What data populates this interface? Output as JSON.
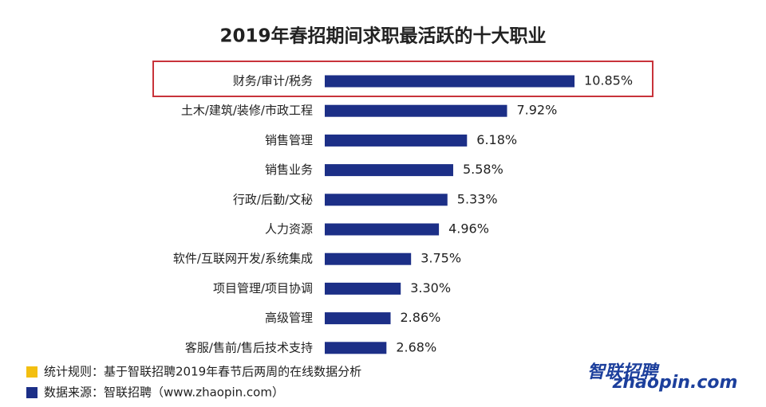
{
  "chart_data": {
    "type": "bar",
    "orientation": "horizontal",
    "title": "2019年春招期间求职最活跃的十大职业",
    "categories": [
      "财务/审计/税务",
      "土木/建筑/装修/市政工程",
      "销售管理",
      "销售业务",
      "行政/后勤/文秘",
      "人力资源",
      "软件/互联网开发/系统集成",
      "项目管理/项目协调",
      "高级管理",
      "客服/售前/售后技术支持"
    ],
    "values": [
      10.85,
      7.92,
      6.18,
      5.58,
      5.33,
      4.96,
      3.75,
      3.3,
      2.86,
      2.68
    ],
    "value_labels": [
      "10.85%",
      "7.92%",
      "6.18%",
      "5.58%",
      "5.33%",
      "4.96%",
      "3.75%",
      "3.30%",
      "2.86%",
      "2.68%"
    ],
    "color": "#1c2f87"
  },
  "notes": [
    {
      "text": "统计规则：基于智联招聘2019年春节后两周的在线数据分析",
      "color": "#f3bf10"
    },
    {
      "text": "数据来源：智联招聘（www.zhaopin.com）",
      "color": "#1c2f87"
    }
  ],
  "logo": {
    "cn": "智联招聘",
    "en": "zhaopin.com"
  }
}
